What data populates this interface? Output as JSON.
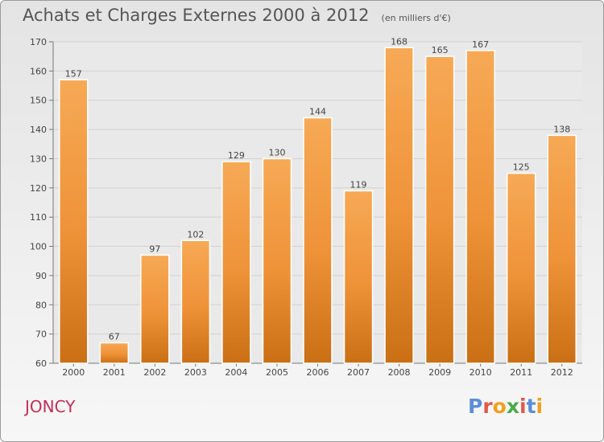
{
  "header": {
    "title": "Achats et Charges Externes 2000 à 2012",
    "subtitle": "(en milliers d'€)"
  },
  "footer": {
    "commune": "JONCY",
    "logo_text": "Proxiti",
    "logo_colors": [
      "#5b8fd6",
      "#e05a4b",
      "#f0a020",
      "#4aaa4a",
      "#e05a4b",
      "#5b8fd6",
      "#f0a020"
    ]
  },
  "chart_data": {
    "type": "bar",
    "categories": [
      "2000",
      "2001",
      "2002",
      "2003",
      "2004",
      "2005",
      "2006",
      "2007",
      "2008",
      "2009",
      "2010",
      "2011",
      "2012"
    ],
    "values": [
      157,
      67,
      97,
      102,
      129,
      130,
      144,
      119,
      168,
      165,
      167,
      125,
      138
    ],
    "title": "Achats et Charges Externes 2000 à 2012",
    "subtitle": "(en milliers d'€)",
    "ylim": [
      60,
      170
    ],
    "yticks": [
      60,
      70,
      80,
      90,
      100,
      110,
      120,
      130,
      140,
      150,
      160,
      170
    ],
    "grid": true,
    "bar_color": "#f09a3e"
  }
}
